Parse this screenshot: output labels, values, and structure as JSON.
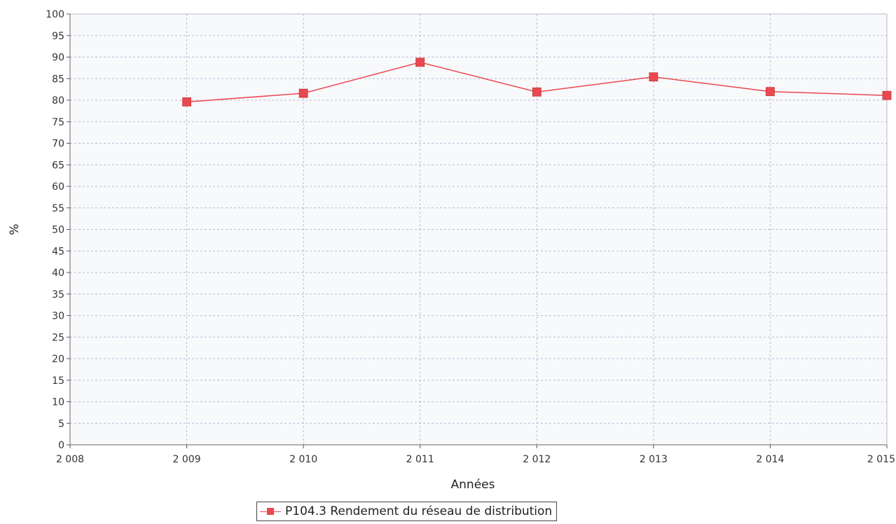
{
  "chart_data": {
    "type": "line",
    "xlabel": "Années",
    "ylabel": "%",
    "xlim": [
      2008,
      2015
    ],
    "ylim": [
      0,
      100
    ],
    "x_ticks": [
      "2 008",
      "2 009",
      "2 010",
      "2 011",
      "2 012",
      "2 013",
      "2 014",
      "2 015"
    ],
    "y_ticks": [
      0,
      5,
      10,
      15,
      20,
      25,
      30,
      35,
      40,
      45,
      50,
      55,
      60,
      65,
      70,
      75,
      80,
      85,
      90,
      95,
      100
    ],
    "grid": true,
    "legend_position": "bottom",
    "series": [
      {
        "name": "P104.3 Rendement du réseau de distribution",
        "color": "#e8494f",
        "marker": "square",
        "x": [
          2009,
          2010,
          2011,
          2012,
          2013,
          2014,
          2015
        ],
        "values": [
          79.6,
          81.6,
          88.8,
          81.9,
          85.4,
          82.0,
          81.1
        ]
      }
    ]
  }
}
